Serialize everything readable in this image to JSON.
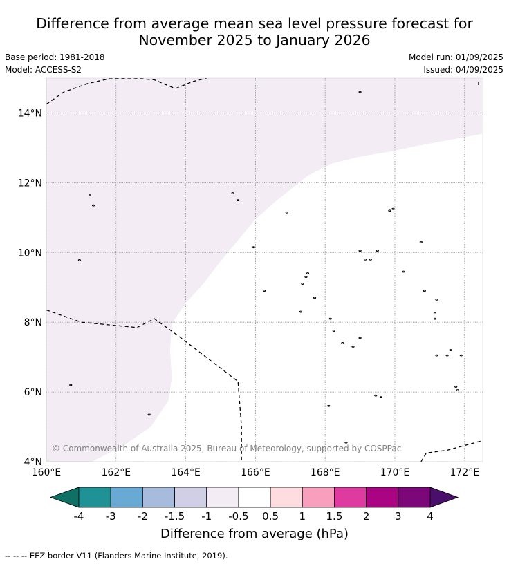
{
  "header": {
    "title_line1": "Difference from average mean sea level pressure forecast for",
    "title_line2": "November 2025 to January 2026",
    "base_period": "Base period: 1981-2018",
    "model": "Model: ACCESS-S2",
    "model_run": "Model run: 01/09/2025",
    "issued": "Issued: 04/09/2025"
  },
  "map": {
    "lon_range": [
      160,
      172.5
    ],
    "lat_range": [
      4,
      15
    ],
    "x_ticks": [
      {
        "value": 160,
        "label": "160°E"
      },
      {
        "value": 162,
        "label": "162°E"
      },
      {
        "value": 164,
        "label": "164°E"
      },
      {
        "value": 166,
        "label": "166°E"
      },
      {
        "value": 168,
        "label": "168°E"
      },
      {
        "value": 170,
        "label": "170°E"
      },
      {
        "value": 172,
        "label": "172°E"
      }
    ],
    "y_ticks": [
      {
        "value": 4,
        "label": "4°N"
      },
      {
        "value": 6,
        "label": "6°N"
      },
      {
        "value": 8,
        "label": "8°N"
      },
      {
        "value": 10,
        "label": "10°N"
      },
      {
        "value": 12,
        "label": "12°N"
      },
      {
        "value": 14,
        "label": "14°N"
      }
    ],
    "gridlines": true,
    "anomaly_region_color": "#f3ecf5",
    "anomaly_region_category": "-1 to -0.5",
    "anomaly_region": [
      [
        160,
        15
      ],
      [
        172.5,
        15
      ],
      [
        172.5,
        13.4
      ],
      [
        171.7,
        13.25
      ],
      [
        170.6,
        13.05
      ],
      [
        169.9,
        12.9
      ],
      [
        169.0,
        12.75
      ],
      [
        168.2,
        12.55
      ],
      [
        167.5,
        12.2
      ],
      [
        167.0,
        11.8
      ],
      [
        166.5,
        11.4
      ],
      [
        166.0,
        10.95
      ],
      [
        165.5,
        10.35
      ],
      [
        165.0,
        9.75
      ],
      [
        164.5,
        9.1
      ],
      [
        164.0,
        8.55
      ],
      [
        163.6,
        7.95
      ],
      [
        163.55,
        7.2
      ],
      [
        163.6,
        6.4
      ],
      [
        163.5,
        5.75
      ],
      [
        163.0,
        5.0
      ],
      [
        162.2,
        4.45
      ],
      [
        161.3,
        4.0
      ],
      [
        160,
        4.0
      ]
    ],
    "eez_lines": [
      [
        [
          160,
          14.25
        ],
        [
          160.5,
          14.6
        ],
        [
          161.2,
          14.85
        ],
        [
          161.8,
          14.98
        ],
        [
          162.5,
          15.0
        ],
        [
          163.1,
          14.95
        ],
        [
          163.7,
          14.7
        ],
        [
          164.2,
          14.9
        ],
        [
          164.6,
          15.0
        ]
      ],
      [
        [
          160,
          8.35
        ],
        [
          161.0,
          8.0
        ],
        [
          162.6,
          7.85
        ],
        [
          163.1,
          8.1
        ],
        [
          163.8,
          7.6
        ],
        [
          165.5,
          6.3
        ],
        [
          165.6,
          5.0
        ],
        [
          165.6,
          4.0
        ]
      ],
      [
        [
          170.75,
          4.0
        ],
        [
          170.9,
          4.25
        ],
        [
          171.5,
          4.33
        ],
        [
          172.5,
          4.6
        ]
      ],
      [
        [
          172.4,
          14.9
        ],
        [
          172.4,
          14.8
        ]
      ]
    ],
    "islands": [
      [
        161.25,
        11.65
      ],
      [
        161.35,
        11.35
      ],
      [
        160.95,
        9.78
      ],
      [
        160.7,
        6.2
      ],
      [
        162.95,
        5.35
      ],
      [
        165.35,
        11.7
      ],
      [
        165.5,
        11.5
      ],
      [
        165.95,
        10.15
      ],
      [
        166.25,
        8.9
      ],
      [
        166.9,
        11.15
      ],
      [
        167.45,
        9.3
      ],
      [
        167.5,
        9.4
      ],
      [
        167.35,
        9.1
      ],
      [
        167.3,
        8.3
      ],
      [
        167.7,
        8.7
      ],
      [
        168.15,
        8.1
      ],
      [
        168.25,
        7.75
      ],
      [
        168.5,
        7.4
      ],
      [
        168.8,
        7.3
      ],
      [
        169.0,
        7.55
      ],
      [
        168.1,
        5.6
      ],
      [
        168.6,
        4.55
      ],
      [
        169.0,
        10.05
      ],
      [
        169.15,
        9.8
      ],
      [
        169.3,
        9.8
      ],
      [
        169.5,
        10.05
      ],
      [
        169.85,
        11.2
      ],
      [
        169.95,
        11.25
      ],
      [
        169.6,
        5.85
      ],
      [
        169.45,
        5.9
      ],
      [
        169.0,
        14.6
      ],
      [
        170.25,
        9.45
      ],
      [
        170.75,
        10.3
      ],
      [
        170.85,
        8.9
      ],
      [
        171.2,
        8.65
      ],
      [
        171.15,
        8.25
      ],
      [
        171.15,
        8.1
      ],
      [
        171.2,
        7.05
      ],
      [
        171.5,
        7.05
      ],
      [
        171.6,
        7.2
      ],
      [
        171.9,
        7.05
      ],
      [
        171.75,
        6.15
      ],
      [
        171.8,
        6.05
      ]
    ],
    "credit": "© Commonwealth of Australia 2025, Bureau of Meteorology, supported by COSPPac"
  },
  "colorbar": {
    "label": "Difference from average (hPa)",
    "ticks": [
      "-4",
      "-3",
      "-2",
      "-1.5",
      "-1",
      "-0.5",
      "0.5",
      "1",
      "1.5",
      "2",
      "3",
      "4"
    ],
    "low_extend_color": "#0f7065",
    "high_extend_color": "#4a0f6a",
    "colors": [
      "#1f9296",
      "#69aad5",
      "#a7bbdd",
      "#cfcfe6",
      "#f3ecf5",
      "#ffffff",
      "#fedcdf",
      "#f89fbd",
      "#de3a9f",
      "#ab0483",
      "#7b0779"
    ]
  },
  "footnote": "--  --  -- EEZ border V11 (Flanders Marine Institute, 2019)."
}
